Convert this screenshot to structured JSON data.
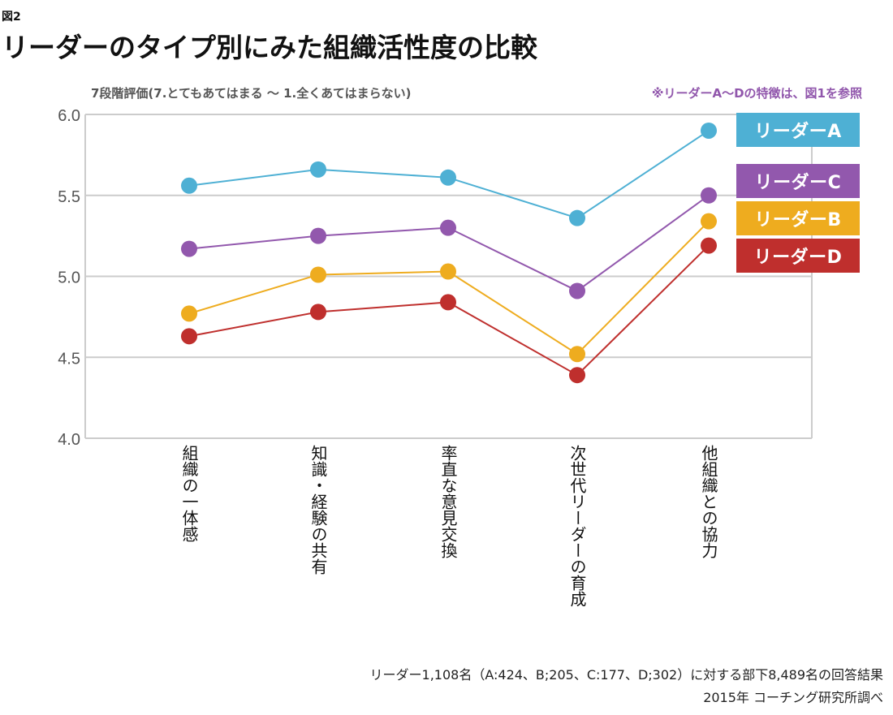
{
  "figure_label": "図2",
  "title": "リーダーのタイプ別にみた組織活性度の比較",
  "scale_note": "7段階評価(7.とてもあてはまる 〜 1.全くあてはまらない)",
  "reference_note": "※リーダーA〜Dの特徴は、図1を参照",
  "footer": {
    "line1": "リーダー1,108名（A:424、B;205、C:177、D;302）に対する部下8,489名の回答結果",
    "line2": "2015年 コーチング研究所調べ"
  },
  "colors": {
    "leader_a": "#4eb0d4",
    "leader_b": "#eeac1f",
    "leader_c": "#9258ad",
    "leader_d": "#bf2f2d",
    "grid": "#cccccc",
    "reference_note": "#9157ac"
  },
  "chart_data": {
    "type": "line",
    "title": "リーダーのタイプ別にみた組織活性度の比較",
    "xlabel": "",
    "ylabel": "7段階評価(7.とてもあてはまる 〜 1.全くあてはまらない)",
    "ylim": [
      4.0,
      6.0
    ],
    "yticks": [
      "6.0",
      "5.5",
      "5.0",
      "4.5",
      "4.0"
    ],
    "ytick_values": [
      6.0,
      5.5,
      5.0,
      4.5,
      4.0
    ],
    "grid": true,
    "legend_position": "top-right",
    "categories": [
      "組織の一体感",
      "知識・経験の共有",
      "率直な意見交換",
      "次世代リーダーの育成",
      "他組織との協力"
    ],
    "series": [
      {
        "name": "リーダーA",
        "color": "#4eb0d4",
        "values": [
          5.56,
          5.66,
          5.61,
          5.36,
          5.9
        ]
      },
      {
        "name": "リーダーC",
        "color": "#9258ad",
        "values": [
          5.17,
          5.25,
          5.3,
          4.91,
          5.5
        ]
      },
      {
        "name": "リーダーB",
        "color": "#eeac1f",
        "values": [
          4.77,
          5.01,
          5.03,
          4.52,
          5.34
        ]
      },
      {
        "name": "リーダーD",
        "color": "#bf2f2d",
        "values": [
          4.63,
          4.78,
          4.84,
          4.39,
          5.19
        ]
      }
    ]
  }
}
